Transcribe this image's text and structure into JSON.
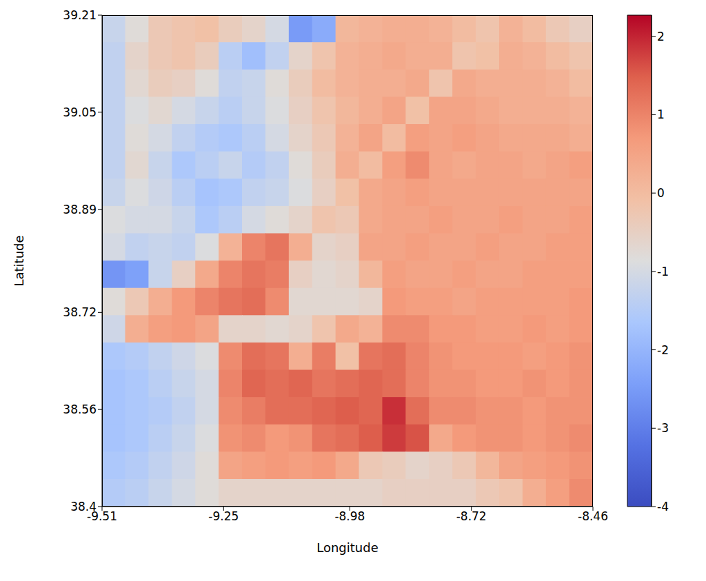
{
  "chart_data": {
    "type": "heatmap",
    "xlabel": "Longitude",
    "ylabel": "Latitude",
    "xlim": [
      -9.51,
      -8.46
    ],
    "ylim": [
      38.4,
      39.21
    ],
    "xticks": [
      -9.51,
      -9.25,
      -8.98,
      -8.72,
      -8.46
    ],
    "yticks": [
      38.4,
      38.56,
      38.72,
      38.89,
      39.05,
      39.21
    ],
    "color": "coolwarm",
    "x": [
      -9.485,
      -9.435,
      -9.385,
      -9.335,
      -9.285,
      -9.235,
      -9.185,
      -9.135,
      -9.085,
      -9.035,
      -8.985,
      -8.935,
      -8.885,
      -8.835,
      -8.785,
      -8.735,
      -8.685,
      -8.635,
      -8.585,
      -8.535,
      -8.485
    ],
    "y": [
      39.1875,
      39.1425,
      39.0975,
      39.0525,
      39.0075,
      38.9625,
      38.9175,
      38.8725,
      38.8275,
      38.7825,
      38.7375,
      38.6925,
      38.6475,
      38.6025,
      38.5575,
      38.5125,
      38.4675,
      38.4225
    ],
    "values": [
      [
        -1.2,
        -0.8,
        -0.3,
        -0.2,
        -0.1,
        -0.4,
        -0.6,
        -1.0,
        -2.5,
        -2.2,
        0.1,
        0.2,
        0.3,
        0.3,
        0.2,
        0.0,
        -0.2,
        0.2,
        0.0,
        -0.3,
        -0.5
      ],
      [
        -1.3,
        -0.6,
        -0.3,
        -0.2,
        -0.4,
        -1.4,
        -1.8,
        -1.3,
        -0.6,
        -0.2,
        0.2,
        0.3,
        0.4,
        0.3,
        0.3,
        -0.2,
        -0.1,
        0.3,
        0.2,
        0.0,
        -0.2
      ],
      [
        -1.3,
        -0.7,
        -0.4,
        -0.5,
        -0.8,
        -1.3,
        -1.2,
        -0.8,
        -0.4,
        0.0,
        0.2,
        0.3,
        0.3,
        0.4,
        -0.2,
        0.4,
        0.3,
        0.3,
        0.3,
        0.2,
        0.0
      ],
      [
        -1.3,
        -0.9,
        -0.7,
        -1.0,
        -1.2,
        -1.4,
        -1.2,
        -0.9,
        -0.5,
        -0.2,
        0.1,
        0.3,
        0.5,
        -0.1,
        0.5,
        0.5,
        0.4,
        0.3,
        0.3,
        0.3,
        0.2
      ],
      [
        -1.3,
        -0.8,
        -1.0,
        -1.3,
        -1.5,
        -1.6,
        -1.4,
        -1.0,
        -0.6,
        -0.3,
        0.2,
        0.5,
        0.0,
        0.6,
        0.5,
        0.6,
        0.5,
        0.4,
        0.4,
        0.4,
        0.3
      ],
      [
        -1.3,
        -0.7,
        -1.2,
        -1.6,
        -1.4,
        -1.2,
        -1.5,
        -1.3,
        -0.8,
        -0.4,
        0.3,
        0.0,
        0.6,
        0.9,
        0.5,
        0.4,
        0.5,
        0.5,
        0.4,
        0.5,
        0.6
      ],
      [
        -1.2,
        -0.9,
        -1.1,
        -1.4,
        -1.7,
        -1.6,
        -1.3,
        -1.2,
        -0.9,
        -0.5,
        -0.1,
        0.4,
        0.5,
        0.6,
        0.5,
        0.5,
        0.5,
        0.5,
        0.5,
        0.5,
        0.5
      ],
      [
        -0.9,
        -1.0,
        -1.0,
        -1.2,
        -1.6,
        -1.4,
        -1.0,
        -0.8,
        -0.6,
        -0.2,
        -0.3,
        0.4,
        0.5,
        0.5,
        0.6,
        0.5,
        0.5,
        0.6,
        0.5,
        0.5,
        0.6
      ],
      [
        -1.0,
        -1.3,
        -1.2,
        -1.3,
        -0.9,
        0.2,
        1.0,
        1.2,
        0.3,
        -0.6,
        -0.5,
        0.5,
        0.5,
        0.6,
        0.5,
        0.5,
        0.6,
        0.5,
        0.5,
        0.6,
        0.6
      ],
      [
        -2.6,
        -2.4,
        -1.2,
        -0.5,
        0.4,
        1.0,
        1.2,
        1.1,
        -0.5,
        -0.7,
        -0.6,
        0.1,
        0.6,
        0.5,
        0.5,
        0.6,
        0.5,
        0.5,
        0.6,
        0.6,
        0.6
      ],
      [
        -0.8,
        -0.3,
        0.3,
        0.7,
        1.0,
        1.2,
        1.3,
        0.9,
        -0.7,
        -0.7,
        -0.7,
        -0.6,
        0.7,
        0.6,
        0.6,
        0.5,
        0.6,
        0.6,
        0.6,
        0.6,
        0.7
      ],
      [
        -1.1,
        0.3,
        0.6,
        0.7,
        0.5,
        -0.6,
        -0.6,
        -0.7,
        -0.6,
        -0.2,
        0.4,
        0.2,
        0.9,
        0.9,
        0.7,
        0.7,
        0.6,
        0.6,
        0.7,
        0.6,
        0.7
      ],
      [
        -1.6,
        -1.5,
        -1.3,
        -1.1,
        -0.9,
        0.9,
        1.3,
        1.2,
        0.3,
        1.1,
        -0.1,
        1.2,
        1.3,
        1.0,
        0.8,
        0.7,
        0.7,
        0.7,
        0.6,
        0.7,
        0.8
      ],
      [
        -1.7,
        -1.6,
        -1.4,
        -1.2,
        -1.0,
        1.0,
        1.4,
        1.3,
        1.4,
        1.2,
        1.3,
        1.4,
        1.3,
        1.0,
        0.8,
        0.8,
        0.7,
        0.7,
        0.8,
        0.7,
        0.8
      ],
      [
        -1.7,
        -1.6,
        -1.5,
        -1.3,
        -1.0,
        0.9,
        1.1,
        1.3,
        1.3,
        1.4,
        1.5,
        1.4,
        1.9,
        1.3,
        0.9,
        0.9,
        0.8,
        0.8,
        0.7,
        0.8,
        0.8
      ],
      [
        -1.7,
        -1.6,
        -1.4,
        -1.2,
        -0.9,
        0.8,
        0.9,
        0.7,
        0.8,
        1.2,
        1.3,
        1.5,
        1.8,
        1.6,
        0.4,
        0.7,
        0.8,
        0.8,
        0.7,
        0.8,
        0.9
      ],
      [
        -1.6,
        -1.5,
        -1.3,
        -1.1,
        -0.8,
        0.5,
        0.6,
        0.7,
        0.6,
        0.7,
        0.4,
        -0.3,
        -0.4,
        -0.6,
        -0.5,
        -0.3,
        0.1,
        0.5,
        0.6,
        0.7,
        0.8
      ],
      [
        -1.5,
        -1.4,
        -1.2,
        -1.0,
        -0.8,
        -0.6,
        -0.6,
        -0.6,
        -0.6,
        -0.6,
        -0.6,
        -0.6,
        -0.5,
        -0.5,
        -0.5,
        -0.5,
        -0.3,
        -0.2,
        0.3,
        0.6,
        0.9
      ]
    ],
    "colorbar": {
      "range": [
        -4,
        2.27
      ],
      "ticks": [
        -4,
        -3,
        -2,
        -1,
        0,
        1,
        2
      ]
    }
  }
}
